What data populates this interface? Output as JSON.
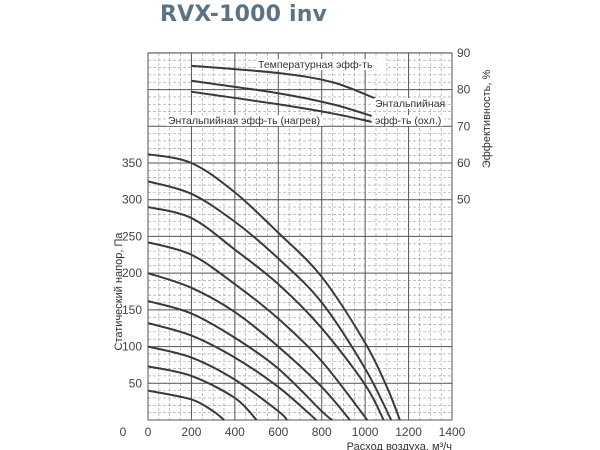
{
  "title": "RVX-1000 inv",
  "chart_data": {
    "type": "line",
    "xlabel": "Расход воздуха, м³/ч",
    "ylabel": "Статический напор, Па",
    "y2label": "Эффективность, %",
    "xlim": [
      0,
      1400
    ],
    "ylim": [
      0,
      350
    ],
    "y2lim": [
      50,
      90
    ],
    "grid": true,
    "x_ticks": [
      "0",
      "200",
      "400",
      "600",
      "800",
      "1000",
      "1200",
      "1400"
    ],
    "y_ticks": [
      "50",
      "100",
      "150",
      "200",
      "250",
      "300",
      "350"
    ],
    "y2_ticks": [
      "50",
      "60",
      "70",
      "80",
      "90"
    ],
    "pressure_series": [
      {
        "points": [
          [
            0,
            362
          ],
          [
            200,
            350
          ],
          [
            400,
            310
          ],
          [
            600,
            255
          ],
          [
            800,
            195
          ],
          [
            1000,
            105
          ],
          [
            1100,
            45
          ],
          [
            1160,
            0
          ]
        ]
      },
      {
        "points": [
          [
            0,
            325
          ],
          [
            200,
            308
          ],
          [
            400,
            270
          ],
          [
            600,
            220
          ],
          [
            800,
            160
          ],
          [
            1000,
            70
          ],
          [
            1120,
            0
          ]
        ]
      },
      {
        "points": [
          [
            0,
            290
          ],
          [
            200,
            275
          ],
          [
            400,
            232
          ],
          [
            600,
            185
          ],
          [
            800,
            125
          ],
          [
            1000,
            48
          ],
          [
            1085,
            0
          ]
        ]
      },
      {
        "points": [
          [
            0,
            242
          ],
          [
            200,
            225
          ],
          [
            400,
            185
          ],
          [
            600,
            138
          ],
          [
            800,
            80
          ],
          [
            1010,
            0
          ]
        ]
      },
      {
        "points": [
          [
            0,
            200
          ],
          [
            200,
            180
          ],
          [
            400,
            147
          ],
          [
            600,
            100
          ],
          [
            800,
            45
          ],
          [
            930,
            0
          ]
        ]
      },
      {
        "points": [
          [
            0,
            162
          ],
          [
            200,
            145
          ],
          [
            400,
            112
          ],
          [
            600,
            70
          ],
          [
            800,
            12
          ],
          [
            848,
            0
          ]
        ]
      },
      {
        "points": [
          [
            0,
            132
          ],
          [
            200,
            115
          ],
          [
            400,
            85
          ],
          [
            600,
            45
          ],
          [
            775,
            0
          ]
        ]
      },
      {
        "points": [
          [
            0,
            100
          ],
          [
            200,
            85
          ],
          [
            400,
            55
          ],
          [
            600,
            12
          ],
          [
            640,
            0
          ]
        ]
      },
      {
        "points": [
          [
            0,
            73
          ],
          [
            200,
            60
          ],
          [
            400,
            30
          ],
          [
            500,
            0
          ]
        ]
      },
      {
        "points": [
          [
            0,
            40
          ],
          [
            200,
            28
          ],
          [
            300,
            12
          ],
          [
            350,
            0
          ]
        ]
      }
    ],
    "efficiency_series": [
      {
        "name": "Температурная эфф-ть",
        "points": [
          [
            200,
            86.5
          ],
          [
            600,
            84.5
          ],
          [
            850,
            82
          ],
          [
            1050,
            77.5
          ]
        ]
      },
      {
        "name": "Энтальпийная эфф-ть (охл.)",
        "points": [
          [
            200,
            82.4
          ],
          [
            600,
            79
          ],
          [
            850,
            76
          ],
          [
            1030,
            72.8
          ]
        ]
      },
      {
        "name": "Энтальпийная эфф-ть (нагрев)",
        "points": [
          [
            200,
            79.4
          ],
          [
            600,
            76
          ],
          [
            850,
            73.5
          ],
          [
            1030,
            71.2
          ]
        ]
      }
    ],
    "annotations": {
      "temp": "Температурная эфф-ть",
      "cool_line1": "Энтальпийная",
      "cool_line2": "эфф-ть (охл.)",
      "heat": "Энтальпийная эфф-ть (нагрев)"
    },
    "colors": {
      "curve": "#3a3a3a",
      "grid_major": "#555555",
      "grid_minor": "#999999",
      "title": "#5d7385"
    }
  }
}
